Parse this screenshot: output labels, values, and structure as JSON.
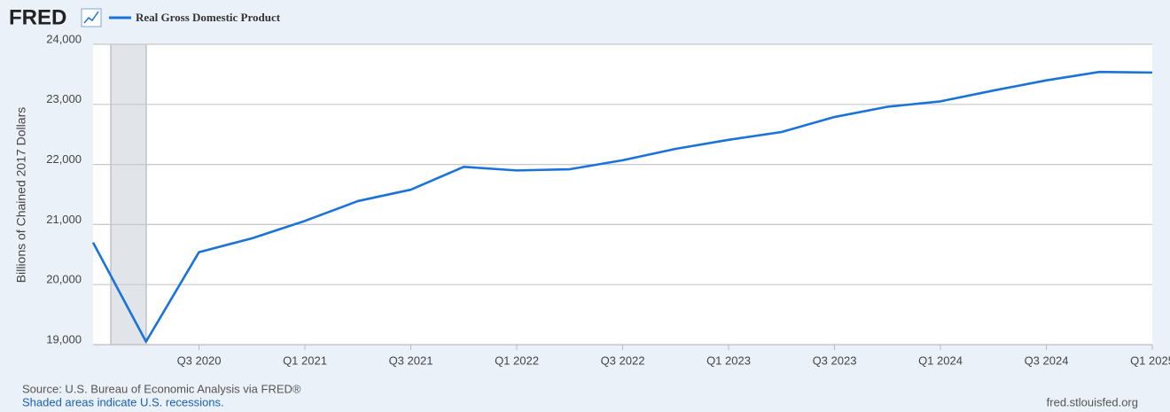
{
  "chart_data": {
    "type": "line",
    "logo": "FRED",
    "ylabel": "Billions of Chained 2017 Dollars",
    "source": "Source: U.S. Bureau of Economic Analysis via FRED®",
    "note": "Shaded areas indicate U.S. recessions.",
    "site": "fred.stlouisfed.org",
    "categories": [
      null,
      null,
      "Q3 2020",
      null,
      "Q1 2021",
      null,
      "Q3 2021",
      null,
      "Q1 2022",
      null,
      "Q3 2022",
      null,
      "Q1 2023",
      null,
      "Q3 2023",
      null,
      "Q1 2024",
      null,
      "Q3 2024",
      null,
      "Q1 2025"
    ],
    "series": [
      {
        "name": "Real Gross Domestic Product",
        "color": "#1a73d9",
        "values": [
          20700,
          19050,
          20540,
          20770,
          21060,
          21390,
          21580,
          21960,
          21900,
          21920,
          22070,
          22260,
          22410,
          22540,
          22790,
          22960,
          23050,
          23230,
          23400,
          23540,
          23530
        ]
      }
    ],
    "ylim": [
      19000,
      24000
    ],
    "yticks": [
      {
        "value": 19000,
        "label": "19,000"
      },
      {
        "value": 20000,
        "label": "20,000"
      },
      {
        "value": 21000,
        "label": "21,000"
      },
      {
        "value": 22000,
        "label": "22,000"
      },
      {
        "value": 23000,
        "label": "23,000"
      },
      {
        "value": 24000,
        "label": "24,000"
      }
    ],
    "grid": true
  }
}
